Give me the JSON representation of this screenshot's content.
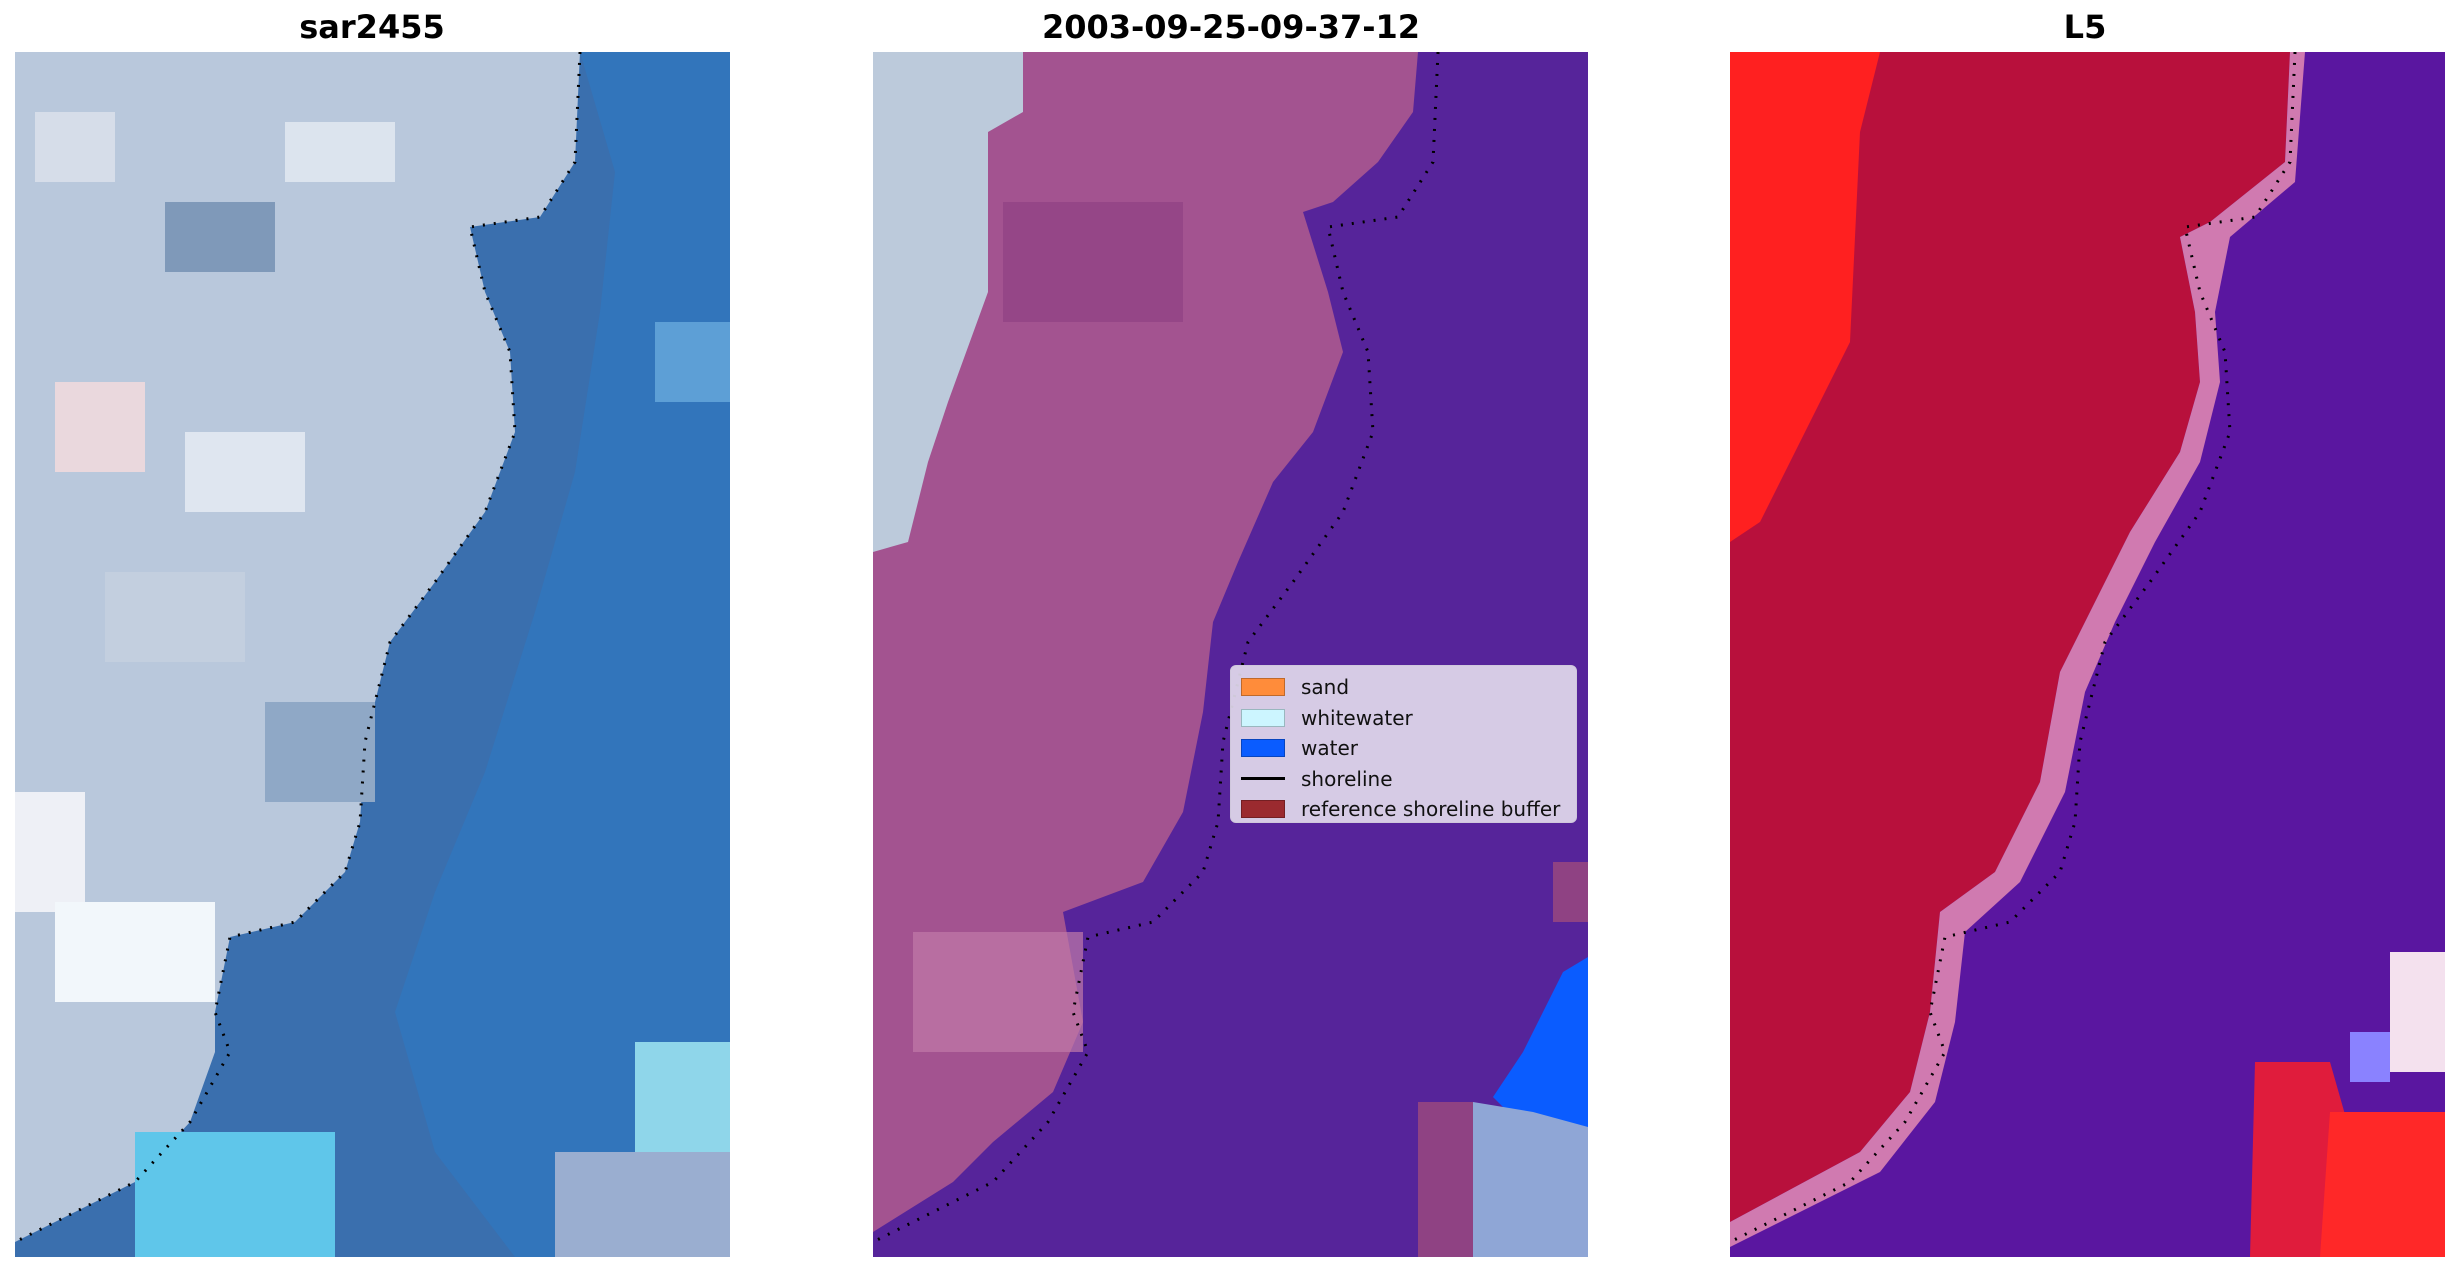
{
  "panels": [
    {
      "title": "sar2455",
      "image": "satellite-rgb-coastline"
    },
    {
      "title": "2003-09-25-09-37-12",
      "image": "classified-coastline"
    },
    {
      "title": "L5",
      "image": "index-map-coastline"
    }
  ],
  "legend": {
    "items": [
      {
        "label": "sand",
        "color": "#ff8c3a",
        "kind": "patch"
      },
      {
        "label": "whitewater",
        "color": "#ccf5ff",
        "kind": "patch"
      },
      {
        "label": "water",
        "color": "#0a5cff",
        "kind": "patch"
      },
      {
        "label": "shoreline",
        "color": "#000000",
        "kind": "line"
      },
      {
        "label": "reference shoreline buffer",
        "color": "#9b2a2f",
        "kind": "patch"
      }
    ]
  }
}
